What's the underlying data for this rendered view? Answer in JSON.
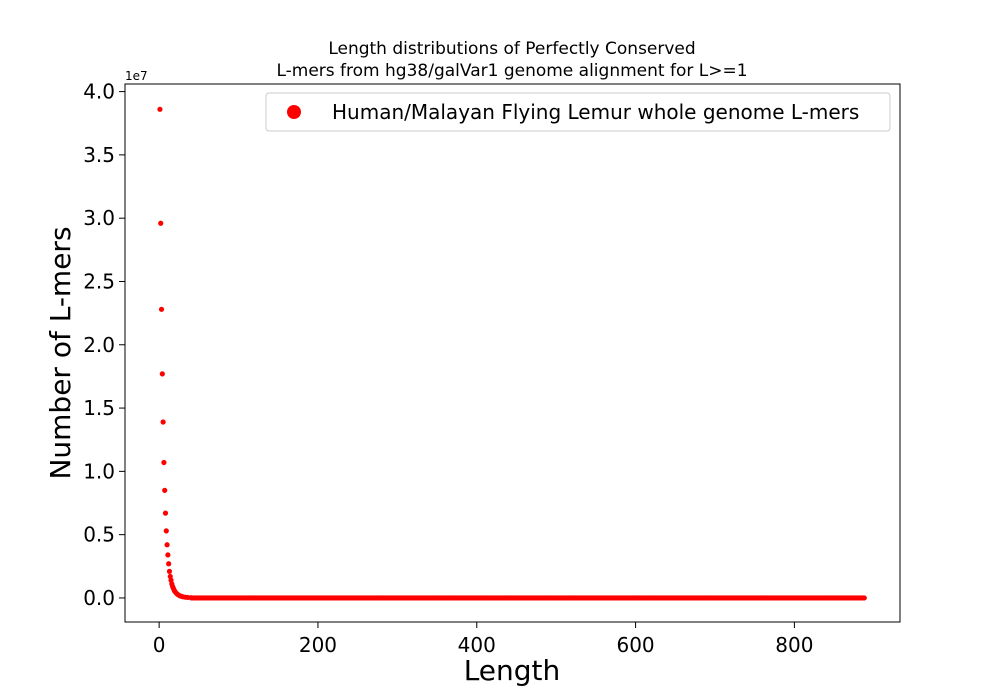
{
  "chart_data": {
    "type": "scatter",
    "title": "Length distributions of Perfectly Conserved\nL-mers from hg38/galVar1 genome alignment for L>=1",
    "xlabel": "Length",
    "ylabel": "Number of L-mers",
    "y_offset_label": "1e7",
    "xlim": [
      -43,
      933
    ],
    "ylim": [
      -1.9,
      40.6
    ],
    "y_scale_factor": 10000000,
    "x_ticks": [
      0,
      200,
      400,
      600,
      800
    ],
    "x_tick_labels": [
      "0",
      "200",
      "400",
      "600",
      "800"
    ],
    "y_ticks": [
      0,
      5,
      10,
      15,
      20,
      25,
      30,
      35,
      40
    ],
    "y_tick_labels": [
      "0.0",
      "0.5",
      "1.0",
      "1.5",
      "2.0",
      "2.5",
      "3.0",
      "3.5",
      "4.0"
    ],
    "grid": false,
    "legend_position": "top-right",
    "series": [
      {
        "name": "Human/Malayan Flying Lemur whole genome L-mers",
        "color": "#ff0000",
        "marker": "circle",
        "x": [
          1,
          2,
          3,
          4,
          5,
          6,
          7,
          8,
          9,
          10,
          11,
          12,
          13,
          14,
          15,
          16,
          17,
          18,
          19,
          20,
          22,
          24,
          26,
          28,
          30,
          33,
          36,
          40
        ],
        "y": [
          38.6,
          29.6,
          22.8,
          17.7,
          13.9,
          10.7,
          8.5,
          6.7,
          5.3,
          4.2,
          3.4,
          2.7,
          2.1,
          1.7,
          1.4,
          1.1,
          0.9,
          0.75,
          0.6,
          0.5,
          0.35,
          0.25,
          0.18,
          0.13,
          0.09,
          0.06,
          0.04,
          0.02
        ],
        "tail_range": [
          41,
          888
        ],
        "tail_value": 0
      }
    ]
  }
}
